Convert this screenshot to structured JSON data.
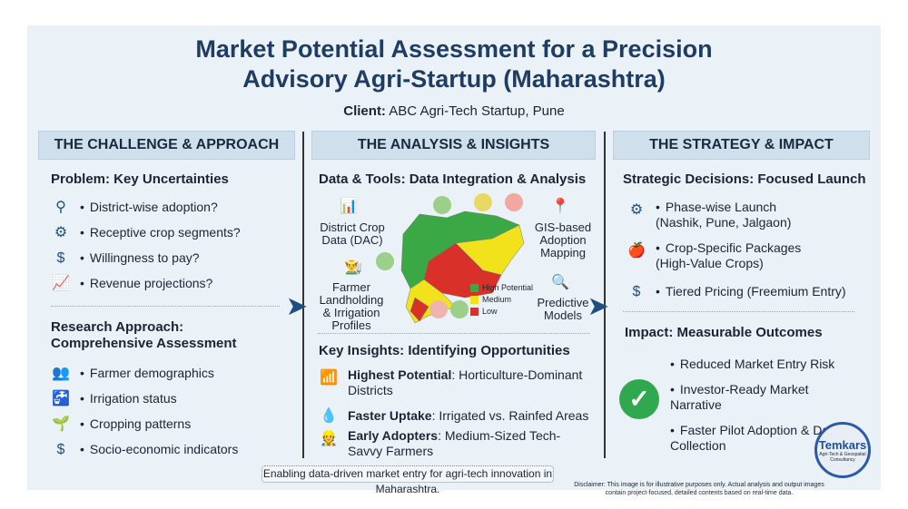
{
  "title_line1": "Market Potential Assessment for a Precision",
  "title_line2": "Advisory Agri-Startup (Maharashtra)",
  "client_label": "Client:",
  "client_value": "ABC Agri-Tech Startup, Pune",
  "columns": {
    "left": {
      "header": "THE CHALLENGE & APPROACH",
      "problem_title": "Problem: Key Uncertainties",
      "problems": [
        {
          "icon": "map-pin-person-icon",
          "text": "District-wise adoption?"
        },
        {
          "icon": "gears-icon",
          "text": "Receptive crop segments?"
        },
        {
          "icon": "hand-coin-icon",
          "text": "Willingness to pay?"
        },
        {
          "icon": "growth-chart-icon",
          "text": "Revenue projections?"
        }
      ],
      "approach_title1": "Research Approach:",
      "approach_title2": "Comprehensive Assessment",
      "approaches": [
        {
          "icon": "people-icon",
          "text": "Farmer demographics"
        },
        {
          "icon": "tap-icon",
          "text": "Irrigation status"
        },
        {
          "icon": "crops-icon",
          "text": "Cropping patterns"
        },
        {
          "icon": "hand-coin-icon",
          "text": "Socio-economic indicators"
        }
      ]
    },
    "middle": {
      "header": "THE ANALYSIS & INSIGHTS",
      "tools_title": "Data & Tools: Data Integration & Analysis",
      "tool_labels": {
        "district": "District Crop Data (DAC)",
        "farmer": "Farmer Landholding & Irrigation Profiles",
        "gis": "GIS-based Adoption Mapping",
        "predictive": "Predictive Models"
      },
      "legend": [
        {
          "label": "High Potential",
          "color": "#3aa845"
        },
        {
          "label": "Medium",
          "color": "#f2e21c"
        },
        {
          "label": "Low",
          "color": "#d9302a"
        }
      ],
      "insights_title": "Key Insights: Identifying Opportunities",
      "insights": [
        {
          "icon": "bar-chart-icon",
          "bold": "Highest Potential",
          "text": ": Horticulture-Dominant Districts"
        },
        {
          "icon": "water-drop-icon",
          "bold": "Faster Uptake",
          "text": ": Irrigated vs. Rainfed Areas"
        },
        {
          "icon": "farmer-icon",
          "bold": "Early Adopters",
          "text": ": Medium-Sized Tech-Savvy Farmers"
        }
      ]
    },
    "right": {
      "header": "THE STRATEGY & IMPACT",
      "strategy_title": "Strategic Decisions: Focused Launch",
      "strategies": [
        {
          "icon": "gear-chart-icon",
          "text": "Phase-wise Launch (Nashik, Pune, Jalgaon)"
        },
        {
          "icon": "apple-hand-icon",
          "text": "Crop-Specific Packages (High-Value Crops)"
        },
        {
          "icon": "hand-coin-icon",
          "text": "Tiered Pricing (Freemium Entry)"
        }
      ],
      "impact_title": "Impact: Measurable Outcomes",
      "impacts": [
        "Reduced Market Entry Risk",
        "Investor-Ready Market Narrative",
        "Faster Pilot Adoption & Data Collection"
      ]
    }
  },
  "footer": "Enabling data-driven market entry for agri-tech innovation in Maharashtra.",
  "disclaimer": "Disclaimer: This image is for illustrative purposes only. Actual analysis and output images contain project-focused, detailed contents based on real-time data.",
  "logo": {
    "name": "Temkars",
    "tagline": "Agri-Tech & Geospatial Consultancy"
  }
}
